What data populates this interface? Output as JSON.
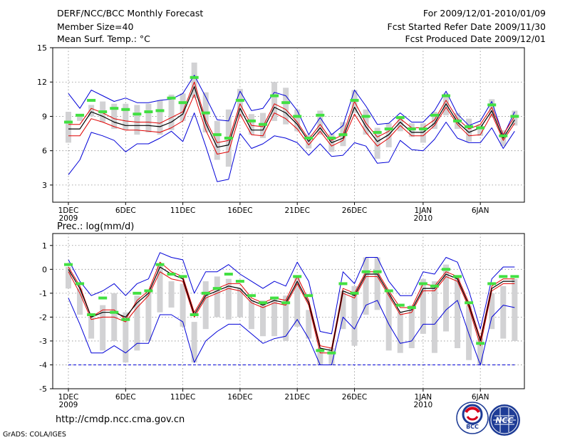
{
  "header": {
    "title": "DERF/NCC/BCC Monthly Forecast",
    "member": "Member Size=40",
    "variable": "Mean Surf. Temp.: °C",
    "period": "For 2009/12/01-2010/01/09",
    "started": "Fcst Started Refer Date 2009/11/30",
    "produced": "Fcst Produced Date 2009/12/01"
  },
  "footer": {
    "url": "http://cmdp.ncc.cma.gov.cn",
    "credit": "GrADS: COLA/IGES",
    "logos": [
      "BCC",
      "NCC"
    ]
  },
  "colors": {
    "upper": "#0000d8",
    "lower": "#0000d8",
    "ens_high": "#e00000",
    "ens_low": "#e00000",
    "mean": "#000000",
    "box": "#d2d2d4",
    "marker": "#42e042",
    "grid": "#8c8c8c"
  },
  "x_ticks": [
    {
      "day": 1,
      "label": "1DEC",
      "sub": "2009"
    },
    {
      "day": 6,
      "label": "6DEC",
      "sub": ""
    },
    {
      "day": 11,
      "label": "11DEC",
      "sub": ""
    },
    {
      "day": 16,
      "label": "16DEC",
      "sub": ""
    },
    {
      "day": 21,
      "label": "21DEC",
      "sub": ""
    },
    {
      "day": 26,
      "label": "26DEC",
      "sub": ""
    },
    {
      "day": 32,
      "label": "1JAN",
      "sub": "2010"
    },
    {
      "day": 37,
      "label": "6JAN",
      "sub": ""
    }
  ],
  "chart_data": [
    {
      "type": "line",
      "title": "Mean Surf. Temp.: °C",
      "x_days": [
        1,
        2,
        3,
        4,
        5,
        6,
        7,
        8,
        9,
        10,
        11,
        12,
        13,
        14,
        15,
        16,
        17,
        18,
        19,
        20,
        21,
        22,
        23,
        24,
        25,
        26,
        27,
        28,
        29,
        30,
        31,
        32,
        33,
        34,
        35,
        36,
        37,
        38,
        39,
        40
      ],
      "ylim": [
        1.5,
        15
      ],
      "yticks": [
        3,
        6,
        9,
        12,
        15
      ],
      "series": [
        {
          "name": "upper envelope",
          "values": [
            11.0,
            9.7,
            11.3,
            10.8,
            10.3,
            10.6,
            10.2,
            10.2,
            10.4,
            10.5,
            11.0,
            12.6,
            10.7,
            8.7,
            8.6,
            11.2,
            9.5,
            9.7,
            11.1,
            10.8,
            9.5,
            7.4,
            8.9,
            7.4,
            8.2,
            11.3,
            9.9,
            8.3,
            8.4,
            9.3,
            8.5,
            8.5,
            9.5,
            11.2,
            9.2,
            8.2,
            8.6,
            10.3,
            7.3,
            9.4
          ]
        },
        {
          "name": "ensemble high",
          "values": [
            8.3,
            8.3,
            9.7,
            9.3,
            8.8,
            8.6,
            8.5,
            8.5,
            8.4,
            8.9,
            9.4,
            12.0,
            8.7,
            6.7,
            6.9,
            10.1,
            8.2,
            8.1,
            10.1,
            9.6,
            8.5,
            7.0,
            8.3,
            6.9,
            7.4,
            10.3,
            8.4,
            7.2,
            7.7,
            8.8,
            8.0,
            8.0,
            8.7,
            10.4,
            8.8,
            7.9,
            8.3,
            9.8,
            7.4,
            9.0
          ]
        },
        {
          "name": "ensemble mean",
          "values": [
            7.9,
            7.9,
            9.4,
            9.0,
            8.5,
            8.2,
            8.2,
            8.2,
            8.1,
            8.5,
            9.2,
            11.6,
            8.4,
            6.3,
            6.5,
            9.7,
            7.8,
            7.8,
            9.8,
            9.3,
            8.3,
            6.8,
            8.0,
            6.7,
            7.1,
            9.8,
            8.1,
            6.8,
            7.4,
            8.5,
            7.6,
            7.6,
            8.4,
            10.1,
            8.5,
            7.6,
            8.0,
            9.5,
            7.1,
            8.7
          ]
        },
        {
          "name": "ensemble low",
          "values": [
            7.3,
            7.3,
            8.8,
            8.5,
            8.1,
            7.8,
            7.8,
            7.7,
            7.6,
            8.0,
            8.6,
            10.9,
            7.8,
            5.7,
            5.9,
            9.2,
            7.4,
            7.3,
            9.3,
            8.8,
            7.9,
            6.5,
            7.7,
            6.4,
            6.9,
            9.2,
            7.6,
            6.4,
            7.1,
            8.2,
            7.3,
            7.3,
            8.2,
            9.8,
            8.3,
            7.3,
            7.4,
            9.2,
            6.9,
            8.4
          ]
        },
        {
          "name": "lower envelope",
          "values": [
            3.9,
            5.2,
            7.6,
            7.3,
            6.9,
            5.9,
            6.6,
            6.6,
            7.1,
            7.7,
            6.8,
            9.3,
            6.4,
            3.3,
            3.5,
            7.5,
            6.2,
            6.6,
            7.3,
            7.1,
            6.7,
            5.6,
            6.6,
            5.5,
            5.6,
            6.7,
            6.4,
            4.9,
            5.0,
            6.9,
            6.1,
            6.0,
            7.0,
            8.5,
            7.1,
            6.7,
            6.7,
            8.0,
            6.2,
            7.7
          ]
        },
        {
          "name": "percentile box high",
          "values": [
            9.4,
            9.0,
            10.0,
            10.3,
            10.1,
            10.1,
            10.0,
            10.1,
            10.4,
            10.9,
            11.0,
            13.7,
            11.1,
            8.6,
            9.6,
            11.4,
            9.2,
            9.3,
            12.0,
            11.5,
            9.6,
            7.4,
            9.5,
            7.5,
            8.5,
            11.3,
            9.6,
            8.0,
            8.4,
            9.0,
            8.4,
            8.4,
            9.4,
            11.0,
            9.3,
            8.8,
            8.3,
            10.5,
            7.8,
            9.5
          ]
        },
        {
          "name": "percentile box low",
          "values": [
            6.7,
            8.6,
            9.0,
            8.5,
            7.9,
            7.8,
            7.4,
            7.6,
            7.4,
            7.8,
            8.6,
            10.6,
            7.6,
            5.2,
            4.6,
            8.9,
            7.4,
            7.1,
            8.6,
            8.3,
            7.7,
            6.2,
            7.4,
            5.9,
            6.4,
            9.3,
            7.4,
            5.3,
            6.3,
            7.7,
            7.2,
            6.7,
            7.9,
            9.1,
            7.9,
            6.8,
            7.3,
            8.9,
            6.4,
            8.2
          ]
        },
        {
          "name": "observed marker",
          "values": [
            8.5,
            9.1,
            10.4,
            9.4,
            9.7,
            9.6,
            9.2,
            9.4,
            9.5,
            10.6,
            10.2,
            12.4,
            9.3,
            7.4,
            7.1,
            10.4,
            8.6,
            8.3,
            10.8,
            10.2,
            9.0,
            7.1,
            9.1,
            7.1,
            7.4,
            10.4,
            9.0,
            7.6,
            7.9,
            8.9,
            7.9,
            7.9,
            9.1,
            10.8,
            8.6,
            8.1,
            8.0,
            10.0,
            7.3,
            9.0
          ]
        }
      ]
    },
    {
      "type": "line",
      "title": "Prec.: log(mm/d)",
      "x_days": [
        1,
        2,
        3,
        4,
        5,
        6,
        7,
        8,
        9,
        10,
        11,
        12,
        13,
        14,
        15,
        16,
        17,
        18,
        19,
        20,
        21,
        22,
        23,
        24,
        25,
        26,
        27,
        28,
        29,
        30,
        31,
        32,
        33,
        34,
        35,
        36,
        37,
        38,
        39,
        40
      ],
      "ylim": [
        -5,
        1.5
      ],
      "yticks": [
        -5,
        -4,
        -3,
        -2,
        -1,
        0,
        1
      ],
      "baseline": -4,
      "series": [
        {
          "name": "upper envelope",
          "values": [
            0.4,
            -0.5,
            -1.1,
            -0.9,
            -0.6,
            -1.1,
            -0.6,
            -0.4,
            0.7,
            0.5,
            0.4,
            -1.0,
            -0.1,
            -0.1,
            0.2,
            -0.2,
            -0.5,
            -0.8,
            -0.5,
            -0.7,
            0.3,
            -0.5,
            -2.6,
            -2.7,
            -0.1,
            -0.6,
            0.5,
            0.5,
            -0.5,
            -1.1,
            -1.1,
            -0.1,
            -0.2,
            0.5,
            0.3,
            -0.9,
            -2.5,
            -0.4,
            0.1,
            0.1
          ]
        },
        {
          "name": "ensemble high",
          "values": [
            0.1,
            -0.7,
            -2.0,
            -1.7,
            -1.7,
            -2.1,
            -1.3,
            -0.9,
            0.3,
            -0.1,
            -0.3,
            -1.8,
            -1.0,
            -0.8,
            -0.6,
            -0.6,
            -1.2,
            -1.4,
            -1.2,
            -1.3,
            -0.3,
            -1.3,
            -3.2,
            -3.3,
            -0.8,
            -1.0,
            -0.1,
            -0.1,
            -0.9,
            -1.6,
            -1.6,
            -0.6,
            -0.7,
            -0.1,
            -0.3,
            -1.4,
            -2.9,
            -0.7,
            -0.4,
            -0.4
          ]
        },
        {
          "name": "ensemble mean",
          "values": [
            0.0,
            -0.8,
            -2.0,
            -1.8,
            -1.8,
            -2.0,
            -1.4,
            -1.0,
            0.1,
            -0.2,
            -0.4,
            -1.9,
            -1.1,
            -0.9,
            -0.7,
            -0.8,
            -1.3,
            -1.5,
            -1.3,
            -1.4,
            -0.5,
            -1.4,
            -3.3,
            -3.4,
            -0.9,
            -1.1,
            -0.2,
            -0.2,
            -1.0,
            -1.8,
            -1.7,
            -0.8,
            -0.8,
            -0.2,
            -0.4,
            -1.5,
            -3.0,
            -0.8,
            -0.5,
            -0.5
          ]
        },
        {
          "name": "ensemble low",
          "values": [
            -0.1,
            -1.0,
            -2.1,
            -2.0,
            -2.0,
            -2.2,
            -1.6,
            -1.1,
            -0.1,
            -0.4,
            -0.5,
            -2.0,
            -1.2,
            -1.0,
            -0.8,
            -0.9,
            -1.4,
            -1.6,
            -1.4,
            -1.5,
            -0.6,
            -1.5,
            -3.5,
            -3.5,
            -1.0,
            -1.2,
            -0.3,
            -0.3,
            -1.1,
            -1.9,
            -1.8,
            -0.9,
            -0.9,
            -0.3,
            -0.5,
            -1.6,
            -3.2,
            -0.9,
            -0.6,
            -0.6
          ]
        },
        {
          "name": "lower envelope",
          "values": [
            -1.2,
            -2.3,
            -3.5,
            -3.5,
            -3.2,
            -3.5,
            -3.1,
            -3.1,
            -1.9,
            -1.9,
            -2.2,
            -3.9,
            -3.0,
            -2.6,
            -2.3,
            -2.3,
            -2.7,
            -3.1,
            -2.9,
            -2.8,
            -2.1,
            -2.9,
            -4.0,
            -4.0,
            -2.0,
            -2.5,
            -1.5,
            -1.3,
            -2.3,
            -3.1,
            -3.0,
            -2.3,
            -2.3,
            -1.7,
            -1.3,
            -2.7,
            -4.0,
            -2.0,
            -1.5,
            -1.6
          ]
        },
        {
          "name": "percentile box high",
          "values": [
            0.1,
            -0.8,
            -2.0,
            -1.5,
            -1.0,
            -1.8,
            -1.1,
            -0.9,
            0.2,
            -0.5,
            -0.6,
            -2.2,
            -0.5,
            -0.3,
            -0.4,
            -0.8,
            -1.3,
            -1.3,
            -1.2,
            -1.1,
            -0.3,
            -1.7,
            -3.3,
            -3.3,
            -0.9,
            -0.7,
            0.5,
            0.5,
            -1.0,
            -1.8,
            -1.5,
            -0.4,
            -0.5,
            0.2,
            -0.3,
            -1.5,
            -2.9,
            -1.0,
            -0.7,
            -0.4
          ]
        },
        {
          "name": "percentile box low",
          "values": [
            -0.8,
            -1.9,
            -2.9,
            -3.4,
            -3.0,
            -3.9,
            -3.4,
            -3.0,
            -1.8,
            -1.6,
            -2.4,
            -3.9,
            -2.5,
            -2.0,
            -2.1,
            -2.0,
            -2.5,
            -2.8,
            -2.8,
            -3.0,
            -2.4,
            -2.9,
            -4.0,
            -4.0,
            -2.5,
            -3.2,
            -1.9,
            -1.7,
            -3.4,
            -3.5,
            -3.3,
            -2.7,
            -3.5,
            -2.6,
            -3.3,
            -3.8,
            -4.0,
            -2.5,
            -2.9,
            -3.0
          ]
        },
        {
          "name": "observed marker",
          "values": [
            0.2,
            -0.6,
            -1.9,
            -1.2,
            -1.8,
            -2.1,
            -1.0,
            -0.9,
            0.2,
            -0.2,
            -0.3,
            -1.9,
            -1.0,
            -0.8,
            -0.2,
            -0.5,
            -1.1,
            -1.4,
            -1.2,
            -1.4,
            -0.3,
            -1.1,
            -3.4,
            -3.5,
            -0.6,
            -1.0,
            -0.1,
            -0.1,
            -0.9,
            -1.5,
            -1.6,
            -0.6,
            -0.7,
            0.0,
            -0.3,
            -1.4,
            -3.1,
            -0.6,
            -0.3,
            -0.3
          ]
        }
      ]
    }
  ]
}
